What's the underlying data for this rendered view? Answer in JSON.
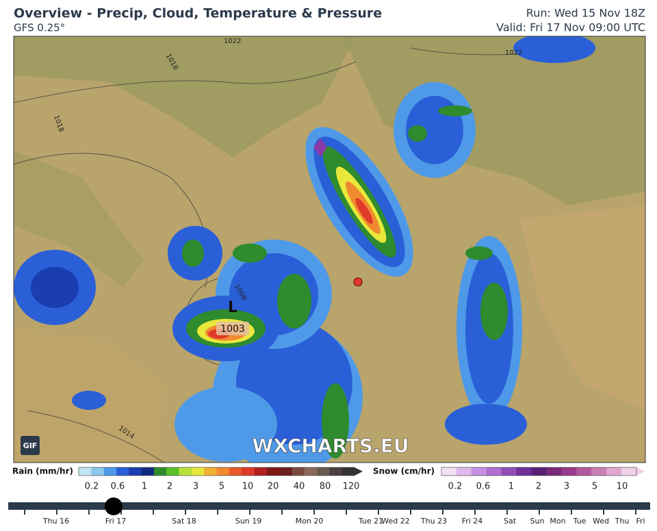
{
  "header": {
    "title": "Overview - Precip, Cloud, Temperature & Pressure",
    "model": "GFS 0.25°",
    "run": "Run: Wed 15 Nov 18Z",
    "valid": "Valid: Fri 17 Nov 09:00 UTC"
  },
  "map": {
    "isobar_labels": [
      "1022",
      "1018",
      "1018",
      "1022",
      "1014",
      "1008"
    ],
    "low": {
      "symbol": "L",
      "pressure": "1003"
    },
    "watermark": "WXCHARTS.EU",
    "gif_button": "GIF"
  },
  "legend": {
    "rain": {
      "label": "Rain (mm/hr)",
      "ticks": [
        0.2,
        0.6,
        1,
        2,
        3,
        5,
        10,
        20,
        40,
        80,
        120
      ]
    },
    "snow": {
      "label": "Snow (cm/hr)",
      "ticks": [
        0.2,
        0.6,
        1,
        2,
        3,
        5,
        10
      ]
    }
  },
  "timeline": {
    "labels": [
      "Thu 16",
      "Fri 17",
      "Sat 18",
      "Sun 19",
      "Mon 20",
      "Tue 21",
      "Wed 22",
      "Thu 23",
      "Fri 24",
      "Sat",
      "Sun",
      "Mon",
      "Tue",
      "Wed",
      "Thu",
      "Fri"
    ]
  }
}
